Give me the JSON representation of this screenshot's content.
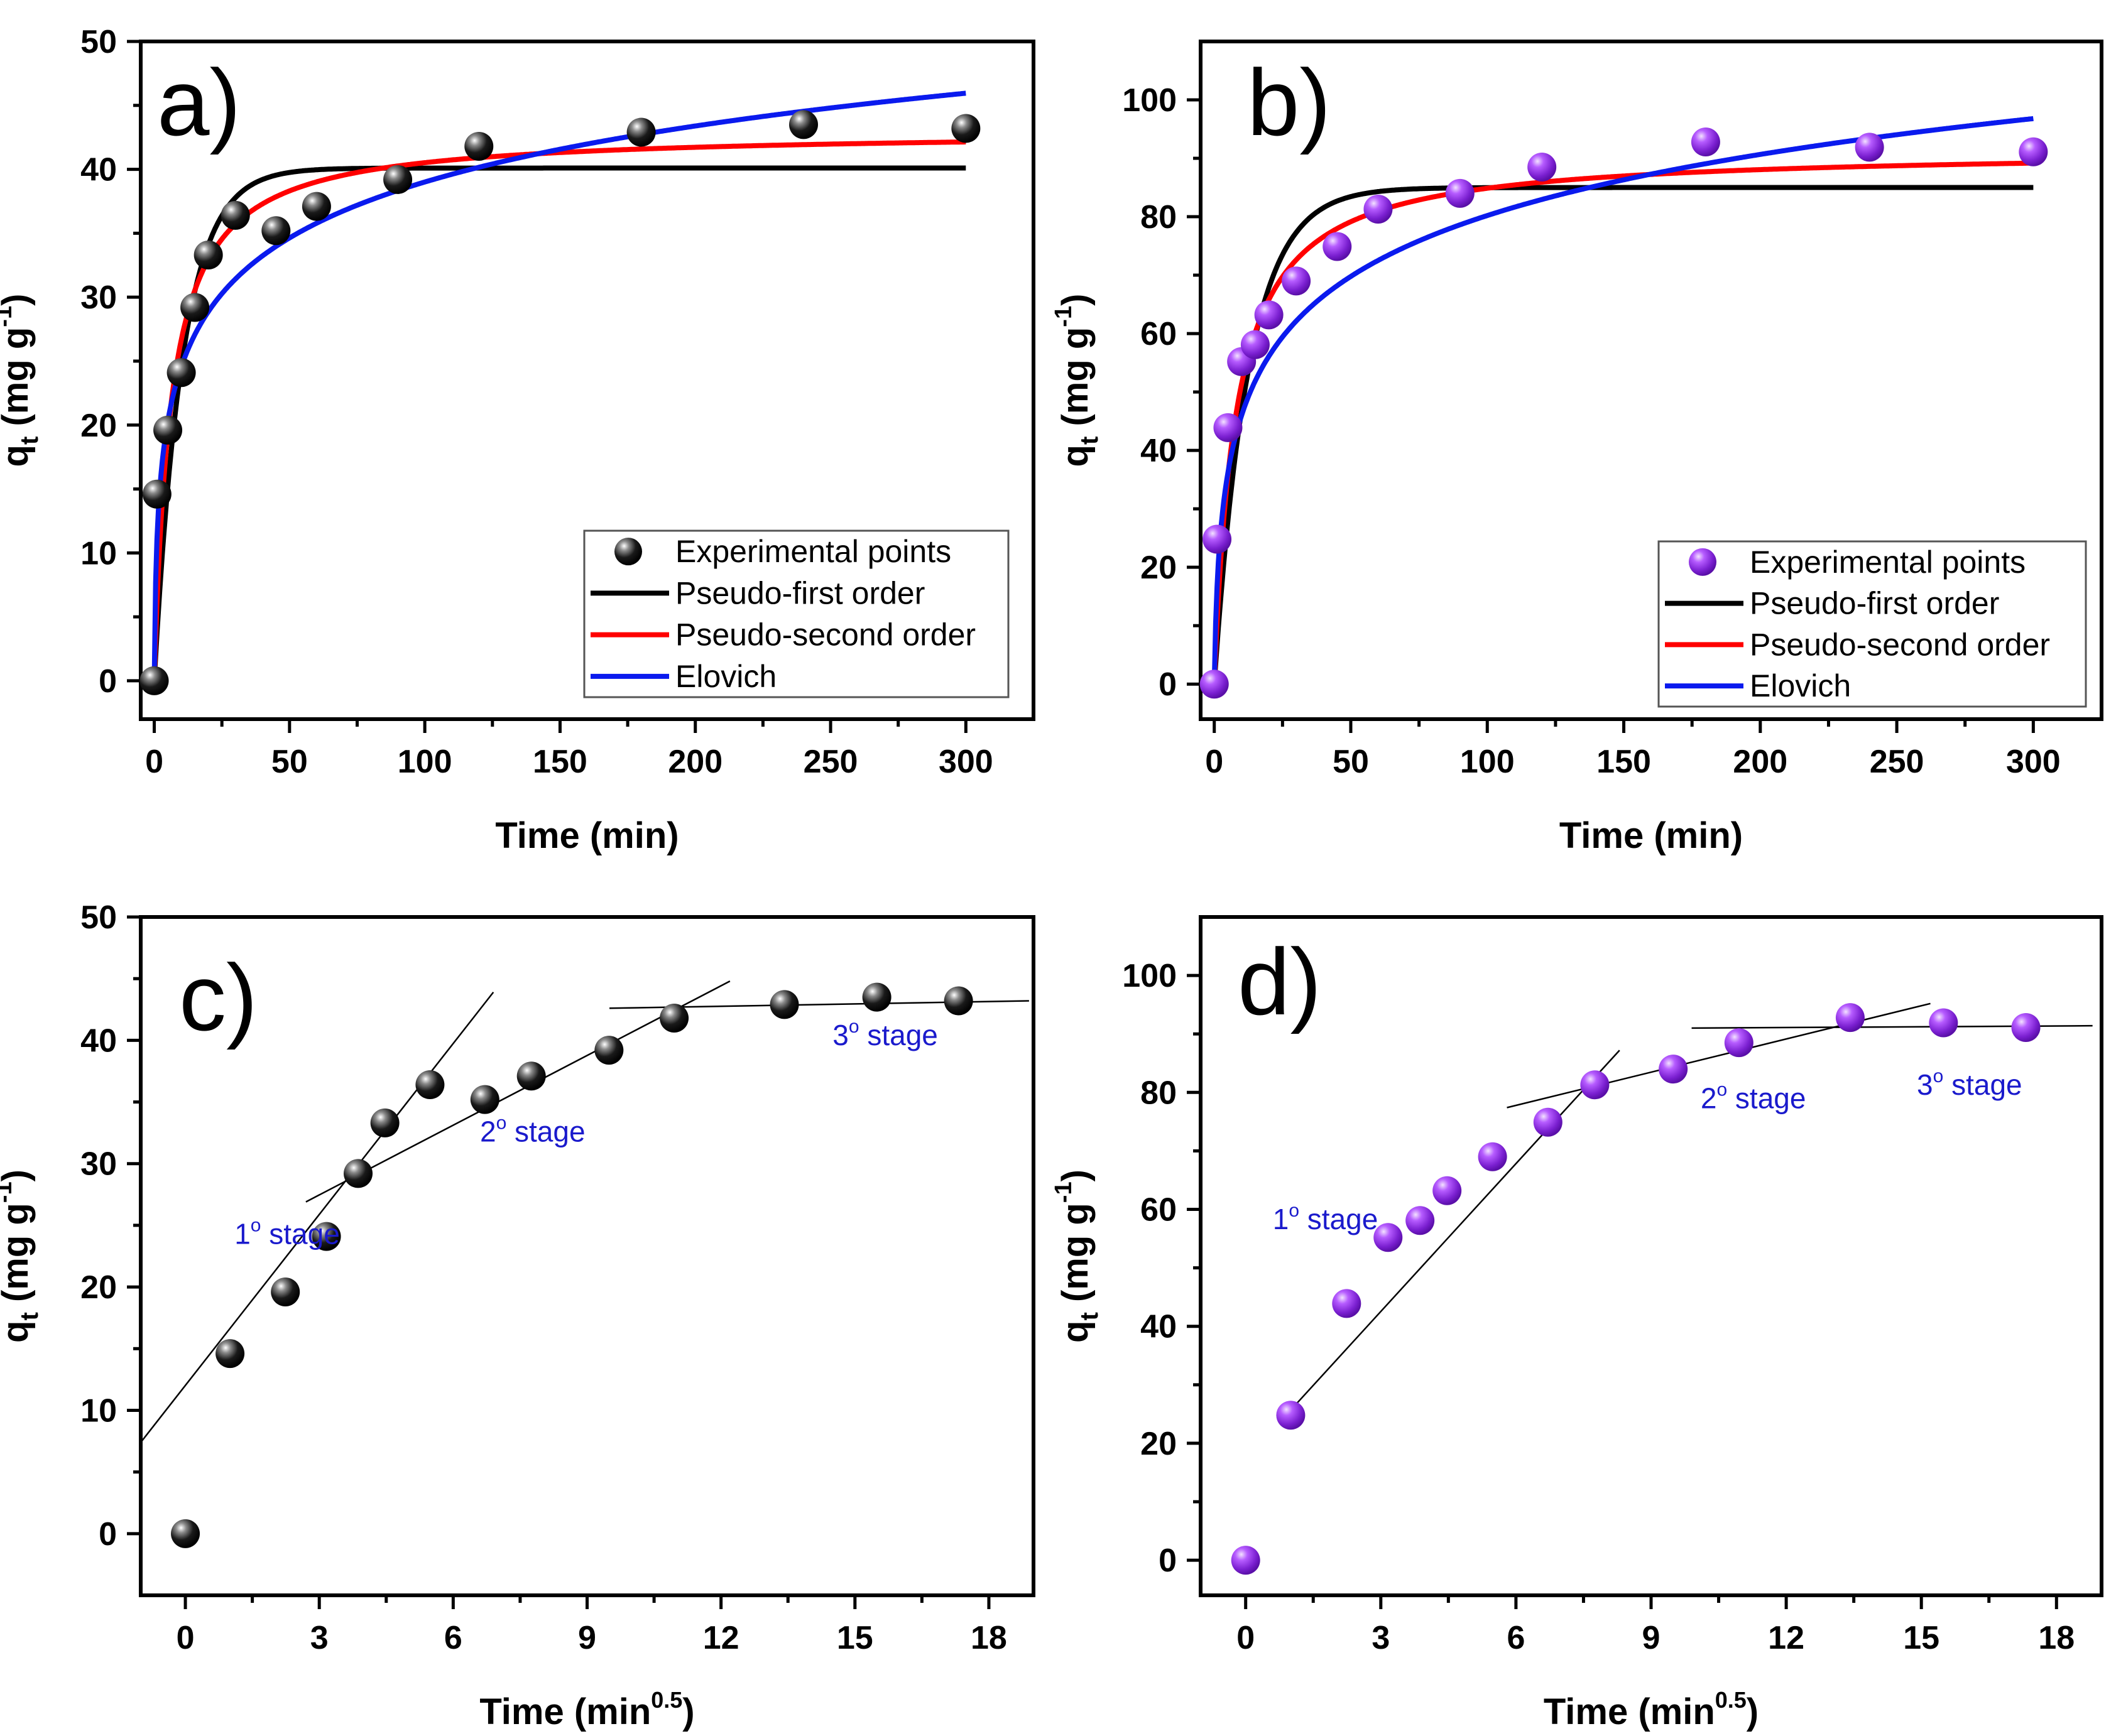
{
  "chart_data": [
    {
      "id": "a",
      "type": "scatter",
      "panel_label": "a)",
      "xlabel": "Time (min)",
      "ylabel": "q",
      "ylabel_sub": "t",
      "ylabel_unit": "(mg g",
      "ylabel_unit_sup": "-1",
      "ylabel_close": ")",
      "xlim": [
        -5,
        325
      ],
      "ylim": [
        -3,
        50
      ],
      "xticks": [
        0,
        50,
        100,
        150,
        200,
        250,
        300
      ],
      "yticks": [
        0,
        10,
        20,
        30,
        40,
        50
      ],
      "point_color": "#111111",
      "points": {
        "x": [
          0,
          1,
          5,
          10,
          15,
          20,
          30,
          45,
          60,
          90,
          120,
          180,
          240,
          300
        ],
        "y": [
          0,
          14.6,
          19.6,
          24.1,
          29.2,
          33.3,
          36.4,
          35.2,
          37.1,
          39.2,
          41.8,
          42.9,
          43.5,
          43.2
        ]
      },
      "models": {
        "pfo": {
          "qe": 40.1,
          "k1": 0.095
        },
        "pso": {
          "qe": 43.0,
          "k2": 0.0038
        },
        "elovich": {
          "a": 30.0,
          "b": 0.158
        }
      },
      "legend": {
        "placement": "bottom-right",
        "entries": [
          {
            "label": "Experimental points",
            "kind": "marker",
            "color": "#111111"
          },
          {
            "label": "Pseudo-first order",
            "kind": "line",
            "color": "#000000",
            "model": "pfo"
          },
          {
            "label": "Pseudo-second order",
            "kind": "line",
            "color": "#ff0000",
            "model": "pso"
          },
          {
            "label": "Elovich",
            "kind": "line",
            "color": "#0a1aee",
            "model": "elovich"
          }
        ]
      }
    },
    {
      "id": "b",
      "type": "scatter",
      "panel_label": "b)",
      "xlabel": "Time (min)",
      "ylabel": "q",
      "ylabel_sub": "t",
      "ylabel_unit": "(mg g",
      "ylabel_unit_sup": "-1",
      "ylabel_close": ")",
      "xlim": [
        -5,
        325
      ],
      "ylim": [
        -6,
        110
      ],
      "xticks": [
        0,
        50,
        100,
        150,
        200,
        250,
        300
      ],
      "yticks": [
        0,
        20,
        40,
        60,
        80,
        100
      ],
      "point_color": "#8a2be2",
      "points": {
        "x": [
          0,
          1,
          5,
          10,
          15,
          20,
          30,
          45,
          60,
          90,
          120,
          180,
          240,
          300
        ],
        "y": [
          0,
          24.8,
          43.9,
          55.2,
          58.1,
          63.2,
          69.0,
          74.9,
          81.3,
          84.0,
          88.5,
          92.8,
          91.9,
          91.1
        ]
      },
      "models": {
        "pfo": {
          "qe": 85.0,
          "k1": 0.08
        },
        "pso": {
          "qe": 91.5,
          "k2": 0.0014
        },
        "elovich": {
          "a": 30.0,
          "b": 0.066
        }
      },
      "legend": {
        "placement": "bottom-right",
        "entries": [
          {
            "label": "Experimental points",
            "kind": "marker",
            "color": "#8a2be2"
          },
          {
            "label": "Pseudo-first order",
            "kind": "line",
            "color": "#000000",
            "model": "pfo"
          },
          {
            "label": "Pseudo-second order",
            "kind": "line",
            "color": "#ff0000",
            "model": "pso"
          },
          {
            "label": "Elovich",
            "kind": "line",
            "color": "#0a1aee",
            "model": "elovich"
          }
        ]
      }
    },
    {
      "id": "c",
      "type": "scatter",
      "panel_label": "c)",
      "xlabel": "Time (min",
      "xlabel_sup": "0.5",
      "xlabel_close": ")",
      "ylabel": "q",
      "ylabel_sub": "t",
      "ylabel_unit": "(mg g",
      "ylabel_unit_sup": "-1",
      "ylabel_close": ")",
      "xlim": [
        -1,
        19
      ],
      "ylim": [
        -5,
        50
      ],
      "xticks": [
        0,
        3,
        6,
        9,
        12,
        15,
        18
      ],
      "yticks": [
        0,
        10,
        20,
        30,
        40,
        50
      ],
      "point_color": "#111111",
      "points": {
        "x": [
          0,
          1,
          2.24,
          3.16,
          3.87,
          4.47,
          5.48,
          6.71,
          7.75,
          9.49,
          10.95,
          13.42,
          15.49,
          17.32
        ],
        "y": [
          0,
          14.6,
          19.6,
          24.1,
          29.2,
          33.3,
          36.4,
          35.2,
          37.1,
          39.2,
          41.8,
          42.9,
          43.5,
          43.2
        ]
      },
      "stage_lines": [
        {
          "x": [
            -1,
            6.9
          ],
          "y": [
            7.4,
            43.9
          ]
        },
        {
          "x": [
            2.7,
            12.2
          ],
          "y": [
            26.9,
            44.8
          ]
        },
        {
          "x": [
            9.5,
            18.9
          ],
          "y": [
            42.6,
            43.2
          ]
        }
      ],
      "stage_labels": [
        {
          "text": "1",
          "sup": "o",
          "rest": " stage",
          "x": 1.1,
          "y": 23.5
        },
        {
          "text": "2",
          "sup": "o",
          "rest": " stage",
          "x": 6.6,
          "y": 31.8
        },
        {
          "text": "3",
          "sup": "o",
          "rest": " stage",
          "x": 14.5,
          "y": 39.6
        }
      ]
    },
    {
      "id": "d",
      "type": "scatter",
      "panel_label": "d)",
      "xlabel": "Time (min",
      "xlabel_sup": "0.5",
      "xlabel_close": ")",
      "ylabel": "q",
      "ylabel_sub": "t",
      "ylabel_unit": "(mg g",
      "ylabel_unit_sup": "-1",
      "ylabel_close": ")",
      "xlim": [
        -1,
        19
      ],
      "ylim": [
        -6,
        110
      ],
      "xticks": [
        0,
        3,
        6,
        9,
        12,
        15,
        18
      ],
      "yticks": [
        0,
        20,
        40,
        60,
        80,
        100
      ],
      "point_color": "#8a2be2",
      "points": {
        "x": [
          0,
          1,
          2.24,
          3.16,
          3.87,
          4.47,
          5.48,
          6.71,
          7.75,
          9.49,
          10.95,
          13.42,
          15.49,
          17.32
        ],
        "y": [
          0,
          24.8,
          43.9,
          55.2,
          58.1,
          63.2,
          69.0,
          74.9,
          81.3,
          84.0,
          88.5,
          92.8,
          91.9,
          91.1
        ]
      },
      "stage_lines": [
        {
          "x": [
            0.8,
            8.3
          ],
          "y": [
            24.0,
            87.2
          ]
        },
        {
          "x": [
            5.8,
            15.2
          ],
          "y": [
            77.4,
            95.2
          ]
        },
        {
          "x": [
            9.9,
            18.8
          ],
          "y": [
            91.0,
            91.4
          ]
        }
      ],
      "stage_labels": [
        {
          "text": "1",
          "sup": "o",
          "rest": " stage",
          "x": 0.6,
          "y": 56.6
        },
        {
          "text": "2",
          "sup": "o",
          "rest": " stage",
          "x": 10.1,
          "y": 77.3
        },
        {
          "text": "3",
          "sup": "o",
          "rest": " stage",
          "x": 14.9,
          "y": 79.6
        }
      ]
    }
  ]
}
